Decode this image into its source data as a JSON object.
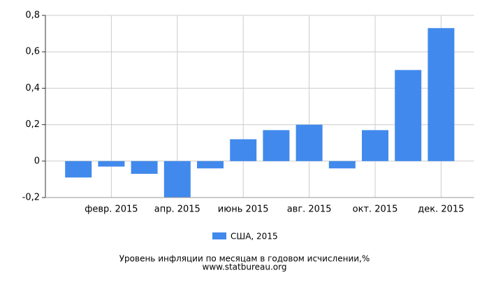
{
  "chart_data": {
    "type": "bar",
    "title": "Уровень инфляции по месяцам в годовом исчислении,%",
    "source": "www.statbureau.org",
    "categories": [
      null,
      "февр. 2015",
      null,
      "апр. 2015",
      null,
      "июнь 2015",
      null,
      "авг. 2015",
      null,
      "окт. 2015",
      null,
      "дек. 2015"
    ],
    "series": [
      {
        "name": "США, 2015",
        "color": "#4189ec",
        "values": [
          -0.09,
          -0.03,
          -0.07,
          -0.2,
          -0.04,
          0.12,
          0.17,
          0.2,
          -0.04,
          0.17,
          0.5,
          0.73
        ]
      }
    ],
    "ylim": [
      -0.2,
      0.8
    ],
    "yticks": [
      {
        "value": -0.2,
        "label": "-0,2"
      },
      0,
      {
        "value": 0.2,
        "label": "0,2"
      },
      {
        "value": 0.4,
        "label": "0,4"
      },
      {
        "value": 0.6,
        "label": "0,6"
      },
      {
        "value": 0.8,
        "label": "0,8"
      }
    ],
    "grid": true
  }
}
